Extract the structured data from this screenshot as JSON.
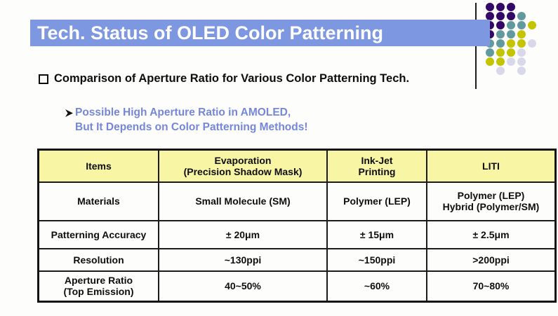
{
  "slide": {
    "title": "Tech. Status of OLED Color Patterning",
    "bullet": "Comparison of Aperture Ratio for Various Color Patterning Tech.",
    "sub_bullet_line1": "Possible High Aperture Ratio in AMOLED,",
    "sub_bullet_line2": "But It Depends on Color Patterning Methods!"
  },
  "table": {
    "header": [
      "Items",
      "Evaporation\n(Precision Shadow Mask)",
      "Ink-Jet\nPrinting",
      "LITI"
    ],
    "rows": [
      {
        "label": "Materials",
        "values": [
          "Small Molecule (SM)",
          "Polymer (LEP)",
          "Polymer (LEP)\nHybrid (Polymer/SM)"
        ]
      },
      {
        "label": "Patterning Accuracy",
        "values": [
          "± 20μm",
          "± 15μm",
          "± 2.5μm"
        ]
      },
      {
        "label": "Resolution",
        "values": [
          "~130ppi",
          "~150ppi",
          ">200ppi"
        ]
      },
      {
        "label": "Aperture Ratio\n(Top Emission)",
        "values": [
          "40~50%",
          "~60%",
          "70~80%"
        ]
      }
    ]
  },
  "colors": {
    "title_bar": "#7d97e0",
    "accent_text": "#7587d8",
    "table_header_bg": "#f8f5a5",
    "highlight_text": "#ffff00",
    "dot_P": "#330866",
    "dot_T": "#609a9e",
    "dot_Y": "#c4c400",
    "dot_L": "#d8d8ea"
  },
  "dots": {
    "grid": [
      "PPP..",
      "PPPT.",
      "PPTTY",
      "PTTY.",
      "TTYYL",
      "TYYL.",
      "YYLL.",
      ".L.L."
    ]
  }
}
